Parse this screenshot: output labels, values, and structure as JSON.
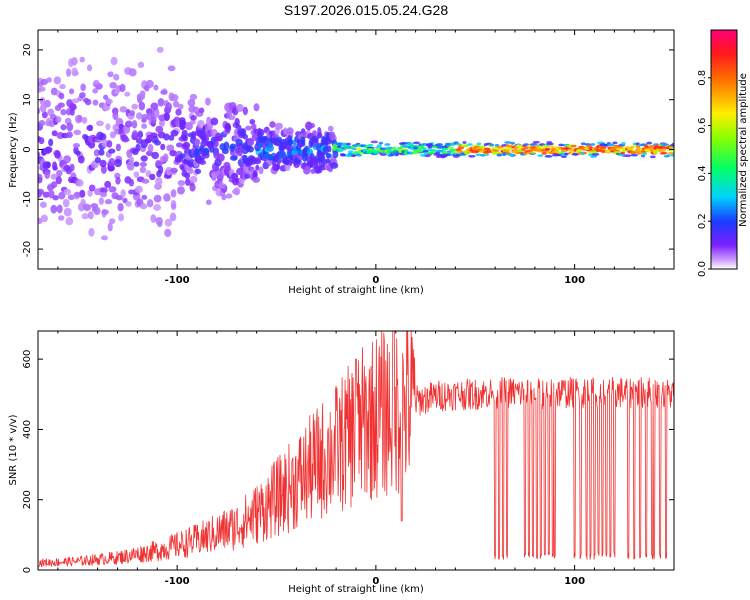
{
  "title": "S197.2026.015.05.24.G28",
  "chart_data": [
    {
      "type": "heatmap",
      "name": "spectrogram",
      "xlabel": "Height of straight line (km)",
      "ylabel": "Frequency (Hz)",
      "xlim": [
        -170,
        150
      ],
      "ylim": [
        -24,
        24
      ],
      "xticks": [
        -100,
        0,
        100
      ],
      "yticks": [
        -20,
        -10,
        0,
        10,
        20
      ],
      "colorbar": {
        "label": "Normalized spectral amplitude",
        "range": [
          0.0,
          1.0
        ],
        "ticks": [
          "0.0",
          "0.2",
          "0.4",
          "0.6",
          "0.8"
        ],
        "tick_values": [
          0.0,
          0.2,
          0.4,
          0.6,
          0.8
        ]
      }
    },
    {
      "type": "line",
      "name": "snr",
      "xlabel": "Height of straight line (km)",
      "ylabel": "SNR (10 * v/v)",
      "xlim": [
        -170,
        150
      ],
      "ylim": [
        0,
        680
      ],
      "xticks": [
        -100,
        0,
        100
      ],
      "yticks": [
        0,
        200,
        400,
        600
      ],
      "color": "#f03232",
      "series": [
        {
          "name": "SNR envelope",
          "x": [
            -170,
            -150,
            -130,
            -110,
            -100,
            -90,
            -80,
            -70,
            -60,
            -50,
            -40,
            -30,
            -20,
            -15,
            -10,
            -5,
            0,
            5,
            10,
            15,
            20,
            30,
            40,
            50,
            60,
            70,
            80,
            90,
            100,
            110,
            120,
            130,
            140,
            150
          ],
          "y": [
            20,
            25,
            35,
            55,
            70,
            85,
            105,
            125,
            160,
            205,
            250,
            300,
            345,
            370,
            395,
            420,
            440,
            450,
            455,
            470,
            480,
            495,
            500,
            500,
            505,
            505,
            500,
            505,
            505,
            505,
            505,
            505,
            505,
            500
          ]
        }
      ],
      "annotations": [
        {
          "x": -10,
          "y": 600,
          "note": "spike"
        },
        {
          "x": 9,
          "y": 680,
          "note": "spike"
        },
        {
          "x": 13,
          "y": 140,
          "note": "dip"
        }
      ],
      "dropouts_x": [
        60,
        62,
        64,
        66,
        75,
        77,
        79,
        81,
        83,
        85,
        87,
        89,
        90,
        100,
        103,
        106,
        108,
        110,
        112,
        114,
        116,
        118,
        120,
        127,
        130,
        133,
        136,
        139,
        140,
        143,
        146
      ]
    }
  ]
}
